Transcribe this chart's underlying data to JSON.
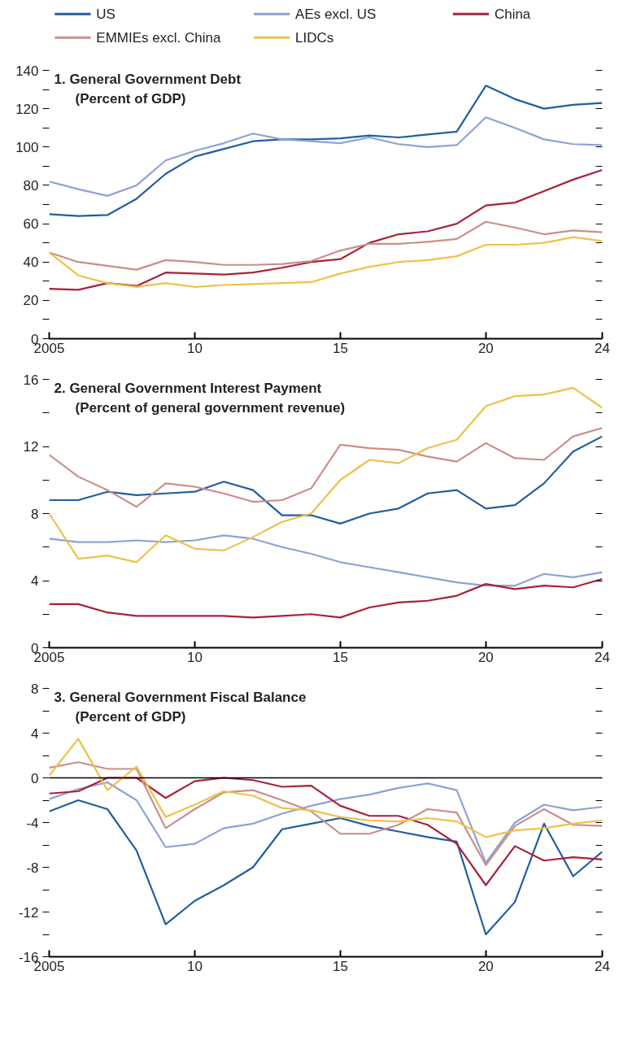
{
  "chart_data": [
    {
      "type": "line",
      "title": "1. General Government Debt",
      "subtitle": "(Percent of GDP)",
      "legend": "top",
      "grid": false,
      "x": [
        2005,
        2006,
        2007,
        2008,
        2009,
        2010,
        2011,
        2012,
        2013,
        2014,
        2015,
        2016,
        2017,
        2018,
        2019,
        2020,
        2021,
        2022,
        2023,
        2024
      ],
      "xlim": [
        2005,
        2024
      ],
      "xticks": [
        2005,
        {
          "value": 2010,
          "label": "10"
        },
        {
          "value": 2015,
          "label": "15"
        },
        {
          "value": 2020,
          "label": "20"
        },
        {
          "value": 2024,
          "label": "24"
        }
      ],
      "ylim": [
        0,
        140
      ],
      "yticks": [
        0,
        {
          "value": 10,
          "label": null
        },
        20,
        {
          "value": 30,
          "label": null
        },
        40,
        {
          "value": 50,
          "label": null
        },
        60,
        {
          "value": 70,
          "label": null
        },
        80,
        {
          "value": 90,
          "label": null
        },
        100,
        {
          "value": 110,
          "label": null
        },
        120,
        {
          "value": 130,
          "label": null
        },
        140
      ],
      "series": [
        {
          "name": "US",
          "color": "#1f5fa0",
          "values": [
            65,
            64,
            64.5,
            73,
            86,
            95,
            99,
            103,
            104,
            104,
            104.5,
            106,
            105,
            106.5,
            108,
            132,
            125,
            120,
            122,
            123
          ]
        },
        {
          "name": "AEs excl. US",
          "color": "#8ea2d4",
          "values": [
            82,
            78,
            74.5,
            80,
            93,
            98,
            102,
            107,
            104,
            103,
            102,
            105,
            101.5,
            100,
            101,
            115.5,
            110,
            104,
            101.5,
            101
          ]
        },
        {
          "name": "China",
          "color": "#a8213a",
          "values": [
            26,
            25.5,
            29,
            27.5,
            34.5,
            34,
            33.5,
            34.5,
            37,
            40,
            41.5,
            50,
            54.5,
            56,
            60,
            69.5,
            71,
            77,
            83,
            88
          ]
        },
        {
          "name": "EMMIEs excl. China",
          "color": "#c98f8a",
          "values": [
            45,
            40,
            38,
            36,
            41,
            40,
            38.5,
            38.5,
            39,
            40.5,
            46,
            49.5,
            49.5,
            50.5,
            52,
            61,
            58,
            54.5,
            56.5,
            55.5
          ]
        },
        {
          "name": "LIDCs",
          "color": "#ecc24a",
          "values": [
            45,
            33,
            29,
            27,
            29,
            27,
            28,
            28.5,
            29,
            29.5,
            34,
            37.5,
            40,
            41,
            43,
            49,
            49,
            50,
            53,
            51
          ]
        }
      ]
    },
    {
      "type": "line",
      "title": "2. General Government Interest Payment",
      "subtitle": "(Percent of general government revenue)",
      "grid": false,
      "x": [
        2005,
        2006,
        2007,
        2008,
        2009,
        2010,
        2011,
        2012,
        2013,
        2014,
        2015,
        2016,
        2017,
        2018,
        2019,
        2020,
        2021,
        2022,
        2023,
        2024
      ],
      "xlim": [
        2005,
        2024
      ],
      "xticks": [
        2005,
        {
          "value": 2010,
          "label": "10"
        },
        {
          "value": 2015,
          "label": "15"
        },
        {
          "value": 2020,
          "label": "20"
        },
        {
          "value": 2024,
          "label": "24"
        }
      ],
      "ylim": [
        0,
        16
      ],
      "yticks": [
        0,
        {
          "value": 2,
          "label": null
        },
        4,
        {
          "value": 6,
          "label": null
        },
        8,
        {
          "value": 10,
          "label": null
        },
        12,
        {
          "value": 14,
          "label": null
        },
        16
      ],
      "series": [
        {
          "color": "#1f5fa0",
          "values": [
            8.8,
            8.8,
            9.3,
            9.1,
            9.2,
            9.3,
            9.9,
            9.4,
            7.9,
            7.9,
            7.4,
            8.0,
            8.3,
            9.2,
            9.4,
            8.3,
            8.5,
            9.8,
            11.7,
            12.6
          ]
        },
        {
          "color": "#8ea2d4",
          "values": [
            6.5,
            6.3,
            6.3,
            6.4,
            6.3,
            6.4,
            6.7,
            6.5,
            6.0,
            5.6,
            5.1,
            4.8,
            4.5,
            4.2,
            3.9,
            3.7,
            3.7,
            4.4,
            4.2,
            4.5
          ]
        },
        {
          "color": "#a8213a",
          "values": [
            2.6,
            2.6,
            2.1,
            1.9,
            1.9,
            1.9,
            1.9,
            1.8,
            1.9,
            2.0,
            1.8,
            2.4,
            2.7,
            2.8,
            3.1,
            3.8,
            3.5,
            3.7,
            3.6,
            4.1
          ]
        },
        {
          "color": "#c98f8a",
          "values": [
            11.5,
            10.2,
            9.4,
            8.4,
            9.8,
            9.6,
            9.2,
            8.7,
            8.8,
            9.5,
            12.1,
            11.9,
            11.8,
            11.4,
            11.1,
            12.2,
            11.3,
            11.2,
            12.6,
            13.1
          ]
        },
        {
          "color": "#ecc24a",
          "values": [
            8.0,
            5.3,
            5.5,
            5.1,
            6.7,
            5.9,
            5.8,
            6.6,
            7.5,
            8.0,
            10.0,
            11.2,
            11.0,
            11.9,
            12.4,
            14.4,
            15.0,
            15.1,
            15.5,
            14.3
          ]
        }
      ]
    },
    {
      "type": "line",
      "title": "3. General Government Fiscal Balance",
      "subtitle": "(Percent of GDP)",
      "grid": false,
      "x": [
        2005,
        2006,
        2007,
        2008,
        2009,
        2010,
        2011,
        2012,
        2013,
        2014,
        2015,
        2016,
        2017,
        2018,
        2019,
        2020,
        2021,
        2022,
        2023,
        2024
      ],
      "xlim": [
        2005,
        2024
      ],
      "xticks": [
        2005,
        {
          "value": 2010,
          "label": "10"
        },
        {
          "value": 2015,
          "label": "15"
        },
        {
          "value": 2020,
          "label": "20"
        },
        {
          "value": 2024,
          "label": "24"
        }
      ],
      "ylim": [
        -16,
        8
      ],
      "yticks": [
        -16,
        {
          "value": -14,
          "label": null
        },
        -12,
        {
          "value": -10,
          "label": null
        },
        -8,
        {
          "value": -6,
          "label": null
        },
        -4,
        {
          "value": -2,
          "label": null
        },
        0,
        {
          "value": 2,
          "label": null
        },
        4,
        {
          "value": 6,
          "label": null
        },
        8
      ],
      "ref_lines": [
        {
          "axis": "y",
          "value": 0,
          "color": "#000000"
        }
      ],
      "series": [
        {
          "color": "#1f5fa0",
          "values": [
            -3.0,
            -2.0,
            -2.8,
            -6.5,
            -13.1,
            -11.0,
            -9.6,
            -8.0,
            -4.6,
            -4.1,
            -3.6,
            -4.3,
            -4.8,
            -5.3,
            -5.7,
            -14.0,
            -11.1,
            -4.1,
            -8.8,
            -6.6
          ]
        },
        {
          "color": "#8ea2d4",
          "values": [
            -1.9,
            -1.0,
            -0.4,
            -2.0,
            -6.2,
            -5.9,
            -4.5,
            -4.1,
            -3.2,
            -2.5,
            -1.9,
            -1.5,
            -0.9,
            -0.5,
            -1.1,
            -7.6,
            -4.0,
            -2.4,
            -2.9,
            -2.6
          ]
        },
        {
          "color": "#a8213a",
          "values": [
            -1.4,
            -1.2,
            0.0,
            0.0,
            -1.8,
            -0.3,
            0.0,
            -0.2,
            -0.8,
            -0.7,
            -2.5,
            -3.4,
            -3.4,
            -4.2,
            -5.9,
            -9.6,
            -6.1,
            -7.4,
            -7.1,
            -7.3
          ]
        },
        {
          "color": "#c98f8a",
          "values": [
            0.9,
            1.4,
            0.8,
            0.8,
            -4.5,
            -2.8,
            -1.3,
            -1.1,
            -2.0,
            -3.0,
            -5.0,
            -5.0,
            -4.2,
            -2.8,
            -3.1,
            -7.8,
            -4.3,
            -2.8,
            -4.2,
            -4.3
          ]
        },
        {
          "color": "#ecc24a",
          "values": [
            0.2,
            3.5,
            -1.1,
            1.0,
            -3.5,
            -2.4,
            -1.2,
            -1.6,
            -2.7,
            -2.9,
            -3.5,
            -3.8,
            -3.9,
            -3.6,
            -3.9,
            -5.3,
            -4.7,
            -4.5,
            -4.1,
            -3.8
          ]
        }
      ]
    }
  ]
}
